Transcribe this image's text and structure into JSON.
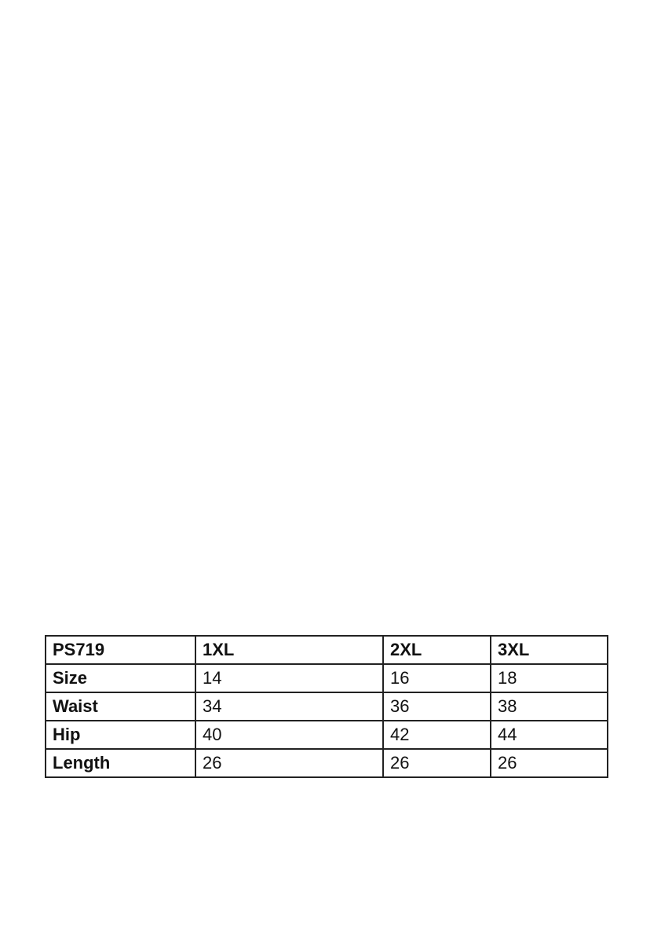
{
  "table": {
    "header": [
      "PS719",
      "1XL",
      "2XL",
      "3XL"
    ],
    "rows": [
      [
        "Size",
        "14",
        "16",
        "18"
      ],
      [
        "Waist",
        "34",
        "36",
        "38"
      ],
      [
        "Hip",
        "40",
        "42",
        "44"
      ],
      [
        "Length",
        "26",
        "26",
        "26"
      ]
    ]
  }
}
